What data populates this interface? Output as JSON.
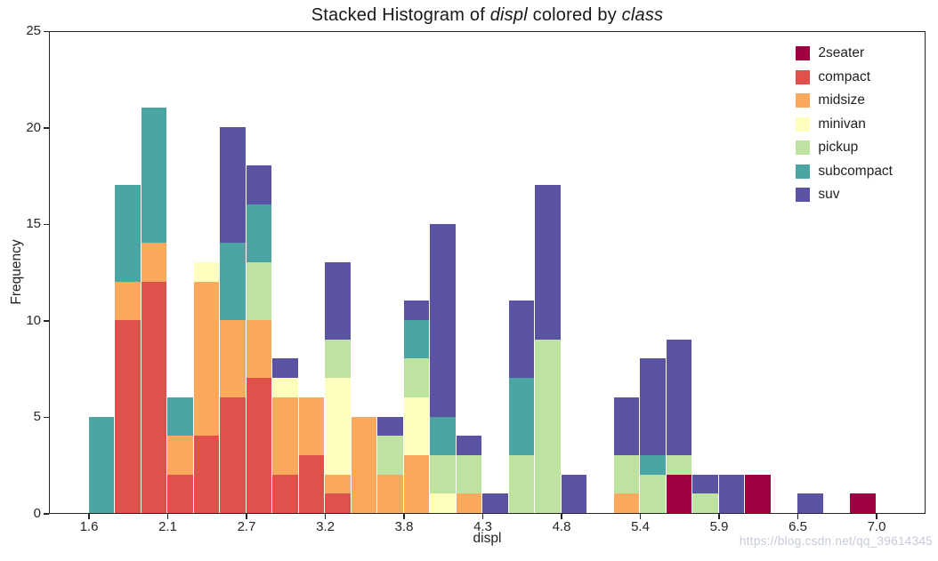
{
  "page": {
    "watermark": "https://blog.csdn.net/qq_39614345"
  },
  "chart_data": {
    "type": "bar",
    "subtype": "stacked-histogram",
    "title_plain": "Stacked Histogram of displ colored by class",
    "title_parts": [
      {
        "text": "Stacked Histogram of ",
        "italic": false
      },
      {
        "text": "displ",
        "italic": true
      },
      {
        "text": " colored by ",
        "italic": false
      },
      {
        "text": "class",
        "italic": true
      }
    ],
    "xlabel": "displ",
    "ylabel": "Frequency",
    "ylim": [
      0,
      25
    ],
    "grid": false,
    "legend_position": "upper right",
    "x_tick_labels": [
      "1.6",
      "2.1",
      "2.7",
      "3.2",
      "3.8",
      "4.3",
      "4.8",
      "5.4",
      "5.9",
      "6.5",
      "7.0"
    ],
    "y_tick_labels": [
      "0",
      "5",
      "10",
      "15",
      "20",
      "25"
    ],
    "n_bins": 30,
    "bin_start": 1.6,
    "bin_width": 0.18,
    "bin_edges": [
      1.6,
      1.78,
      1.96,
      2.14,
      2.32,
      2.5,
      2.68,
      2.86,
      3.04,
      3.22,
      3.4,
      3.58,
      3.76,
      3.94,
      4.12,
      4.3,
      4.48,
      4.66,
      4.84,
      5.02,
      5.2,
      5.38,
      5.56,
      5.74,
      5.92,
      6.1,
      6.28,
      6.46,
      6.64,
      6.82,
      7.0
    ],
    "stack_order_note": "series listed bottom-to-top of stack",
    "series": [
      {
        "name": "2seater",
        "color": "#9E0142",
        "values": [
          0,
          0,
          0,
          0,
          0,
          0,
          0,
          0,
          0,
          0,
          0,
          0,
          0,
          0,
          0,
          0,
          0,
          0,
          0,
          0,
          0,
          0,
          2,
          0,
          0,
          2,
          0,
          0,
          0,
          1
        ]
      },
      {
        "name": "compact",
        "color": "#E1514B",
        "values": [
          0,
          10,
          12,
          2,
          4,
          6,
          7,
          2,
          3,
          1,
          0,
          0,
          0,
          0,
          0,
          0,
          0,
          0,
          0,
          0,
          0,
          0,
          0,
          0,
          0,
          0,
          0,
          0,
          0,
          0
        ]
      },
      {
        "name": "midsize",
        "color": "#FBA95C",
        "values": [
          0,
          2,
          2,
          2,
          8,
          4,
          3,
          4,
          3,
          1,
          5,
          2,
          3,
          0,
          1,
          0,
          0,
          0,
          0,
          0,
          1,
          0,
          0,
          0,
          0,
          0,
          0,
          0,
          0,
          0
        ]
      },
      {
        "name": "minivan",
        "color": "#FEFEBF",
        "values": [
          0,
          0,
          0,
          0,
          1,
          0,
          0,
          1,
          0,
          5,
          0,
          0,
          3,
          1,
          0,
          0,
          0,
          0,
          0,
          0,
          0,
          0,
          0,
          0,
          0,
          0,
          0,
          0,
          0,
          0
        ]
      },
      {
        "name": "pickup",
        "color": "#BEE3A0",
        "values": [
          0,
          0,
          0,
          0,
          0,
          0,
          3,
          0,
          0,
          2,
          0,
          2,
          2,
          2,
          2,
          0,
          3,
          9,
          0,
          0,
          2,
          2,
          1,
          1,
          0,
          0,
          0,
          0,
          0,
          0
        ]
      },
      {
        "name": "subcompact",
        "color": "#4BA6A3",
        "values": [
          5,
          5,
          7,
          2,
          0,
          4,
          3,
          0,
          0,
          0,
          0,
          0,
          2,
          2,
          0,
          0,
          4,
          0,
          0,
          0,
          0,
          1,
          0,
          0,
          0,
          0,
          0,
          0,
          0,
          0
        ]
      },
      {
        "name": "suv",
        "color": "#5A53A3",
        "values": [
          0,
          0,
          0,
          0,
          0,
          6,
          2,
          1,
          0,
          4,
          0,
          1,
          1,
          10,
          1,
          1,
          4,
          8,
          2,
          0,
          3,
          5,
          6,
          1,
          2,
          0,
          0,
          1,
          0,
          0
        ]
      }
    ],
    "bin_totals": [
      5,
      17,
      21,
      6,
      13,
      20,
      18,
      8,
      6,
      13,
      5,
      5,
      11,
      15,
      4,
      1,
      11,
      17,
      2,
      0,
      6,
      8,
      9,
      2,
      2,
      2,
      0,
      1,
      0,
      1
    ]
  }
}
